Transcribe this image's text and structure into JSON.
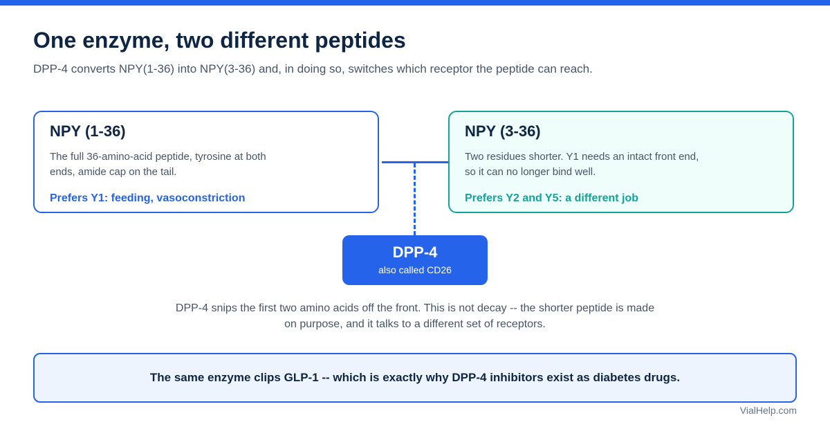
{
  "header": {
    "title": "One enzyme, two different peptides",
    "subtitle": "DPP-4 converts NPY(1-36) into NPY(3-36) and, in doing so, switches which receptor the peptide can reach."
  },
  "left_card": {
    "title": "NPY (1-36)",
    "description": "The full 36-amino-acid peptide, tyrosine at both ends, amide cap on the tail.",
    "preference": "Prefers Y1: feeding, vasoconstriction"
  },
  "right_card": {
    "title": "NPY (3-36)",
    "description": "Two residues shorter. Y1 needs an intact front end, so it can no longer bind well.",
    "preference": "Prefers Y2 and Y5: a different job"
  },
  "enzyme": {
    "name": "DPP-4",
    "alias": "also called CD26"
  },
  "explanation": "DPP-4 snips the first two amino acids off the front. This is not decay -- the shorter peptide is made on purpose, and it talks to a different set of receptors.",
  "callout": "The same enzyme clips GLP-1 -- which is exactly why DPP-4 inhibitors exist as diabetes drugs.",
  "credit": "VialHelp.com",
  "colors": {
    "accent_blue": "#2563eb",
    "accent_teal": "#14a39a",
    "title_navy": "#0f2544",
    "body_gray": "#475569"
  }
}
